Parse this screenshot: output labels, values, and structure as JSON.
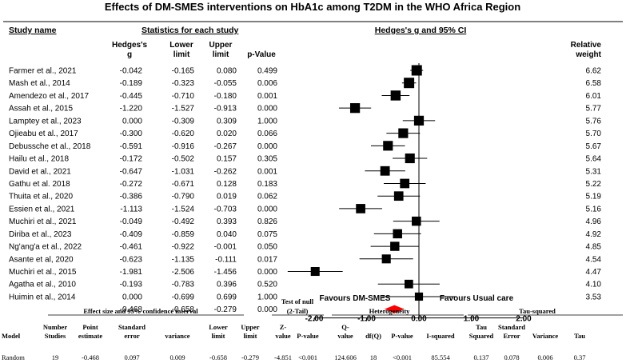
{
  "chart_data": {
    "type": "forest",
    "title": "Effects of DM-SMES interventions on HbA1c among T2DM in the WHO Africa Region",
    "headers": {
      "study_name": "Study name",
      "stats_group": "Statistics for each study",
      "plot_group": "Hedges's g and 95% CI",
      "hedges_line1": "Hedges's",
      "hedges_line2": "g",
      "lower_line1": "Lower",
      "lower_line2": "limit",
      "upper_line1": "Upper",
      "upper_line2": "limit",
      "pvalue": "p-Value",
      "weight_line1": "Relative",
      "weight_line2": "weight"
    },
    "studies": [
      {
        "name": "Farmer et al., 2021",
        "g": "-0.042",
        "lower": "-0.165",
        "upper": "0.080",
        "p": "0.499",
        "weight": "6.62"
      },
      {
        "name": "Mash et al., 2014",
        "g": "-0.189",
        "lower": "-0.323",
        "upper": "-0.055",
        "p": "0.006",
        "weight": "6.58"
      },
      {
        "name": "Amendezo et al., 2017",
        "g": "-0.445",
        "lower": "-0.710",
        "upper": "-0.180",
        "p": "0.001",
        "weight": "6.01"
      },
      {
        "name": "Assah et al., 2015",
        "g": "-1.220",
        "lower": "-1.527",
        "upper": "-0.913",
        "p": "0.000",
        "weight": "5.77"
      },
      {
        "name": "Lamptey et al., 2023",
        "g": "0.000",
        "lower": "-0.309",
        "upper": "0.309",
        "p": "1.000",
        "weight": "5.76"
      },
      {
        "name": "Ojieabu et al., 2017",
        "g": "-0.300",
        "lower": "-0.620",
        "upper": "0.020",
        "p": "0.066",
        "weight": "5.70"
      },
      {
        "name": "Debussche et al., 2018",
        "g": "-0.591",
        "lower": "-0.916",
        "upper": "-0.267",
        "p": "0.000",
        "weight": "5.67"
      },
      {
        "name": "Hailu et al., 2018",
        "g": "-0.172",
        "lower": "-0.502",
        "upper": "0.157",
        "p": "0.305",
        "weight": "5.64"
      },
      {
        "name": "David  et al., 2021",
        "g": "-0.647",
        "lower": "-1.031",
        "upper": "-0.262",
        "p": "0.001",
        "weight": "5.31"
      },
      {
        "name": "Gathu et al. 2018",
        "g": "-0.272",
        "lower": "-0.671",
        "upper": "0.128",
        "p": "0.183",
        "weight": "5.22"
      },
      {
        "name": "Thuita et al., 2020",
        "g": "-0.386",
        "lower": "-0.790",
        "upper": "0.019",
        "p": "0.062",
        "weight": "5.19"
      },
      {
        "name": "Essien  et al., 2021",
        "g": "-1.113",
        "lower": "-1.524",
        "upper": "-0.703",
        "p": "0.000",
        "weight": "5.16"
      },
      {
        "name": "Muchiri et al., 2021",
        "g": "-0.049",
        "lower": "-0.492",
        "upper": "0.393",
        "p": "0.826",
        "weight": "4.96"
      },
      {
        "name": "Diriba et al., 2023",
        "g": "-0.409",
        "lower": "-0.859",
        "upper": "0.040",
        "p": "0.075",
        "weight": "4.92"
      },
      {
        "name": "Ng'ang'a et al., 2022",
        "g": "-0.461",
        "lower": "-0.922",
        "upper": "-0.001",
        "p": "0.050",
        "weight": "4.85"
      },
      {
        "name": "Asante et al, 2020",
        "g": "-0.623",
        "lower": "-1.135",
        "upper": "-0.111",
        "p": "0.017",
        "weight": "4.54"
      },
      {
        "name": "Muchiri et al., 2015",
        "g": "-1.981",
        "lower": "-2.506",
        "upper": "-1.456",
        "p": "0.000",
        "weight": "4.47"
      },
      {
        "name": "Agatha et al., 2010",
        "g": "-0.193",
        "lower": "-0.783",
        "upper": "0.396",
        "p": "0.520",
        "weight": "4.10"
      },
      {
        "name": "Huimin  et al., 2014",
        "g": "0.000",
        "lower": "-0.699",
        "upper": "0.699",
        "p": "1.000",
        "weight": "3.53"
      }
    ],
    "pooled": {
      "g": "-0.468",
      "lower": "-0.658",
      "upper": "-0.279",
      "p": "0.000"
    },
    "x_ticks": [
      "-2.00",
      "-1.00",
      "0.00",
      "1.00",
      "2.00"
    ],
    "xlim": [
      -2,
      2
    ],
    "favours_left": "Favours DM-SMES",
    "favours_right": "Favours Usual care",
    "diamond_color": "#ff0000",
    "marker_color": "#000000"
  },
  "summary_table": {
    "groups": {
      "effect": "Effect size and 95% confidence interval",
      "null_line1": "Test of null",
      "null_line2": "(2-Tail)",
      "heterogeneity": "Heterogeneity",
      "tau": "Tau-squared"
    },
    "columns": [
      {
        "l1": "",
        "l2": "Model"
      },
      {
        "l1": "Number",
        "l2": "Studies"
      },
      {
        "l1": "Point",
        "l2": "estimate"
      },
      {
        "l1": "Standard",
        "l2": "error"
      },
      {
        "l1": "",
        "l2": "variance"
      },
      {
        "l1": "Lower",
        "l2": "limit"
      },
      {
        "l1": "Upper",
        "l2": "limit"
      },
      {
        "l1": "Z-",
        "l2": "value"
      },
      {
        "l1": "",
        "l2": "P-value"
      },
      {
        "l1": "Q-",
        "l2": "value"
      },
      {
        "l1": "",
        "l2": "df(Q)"
      },
      {
        "l1": "",
        "l2": "P-value"
      },
      {
        "l1": "",
        "l2": "I-squared"
      },
      {
        "l1": "Tau",
        "l2": "Squared"
      },
      {
        "l1": "Standard",
        "l2": "Error"
      },
      {
        "l1": "",
        "l2": "Variance"
      },
      {
        "l1": "",
        "l2": "Tau"
      }
    ],
    "row": [
      "Random",
      "19",
      "-0.468",
      "0.097",
      "0.009",
      "-0.658",
      "-0.279",
      "-4.851",
      "<0.001",
      "124.606",
      "18",
      "<0.001",
      "85.554",
      "0.137",
      "0.078",
      "0.006",
      "0.37"
    ]
  }
}
